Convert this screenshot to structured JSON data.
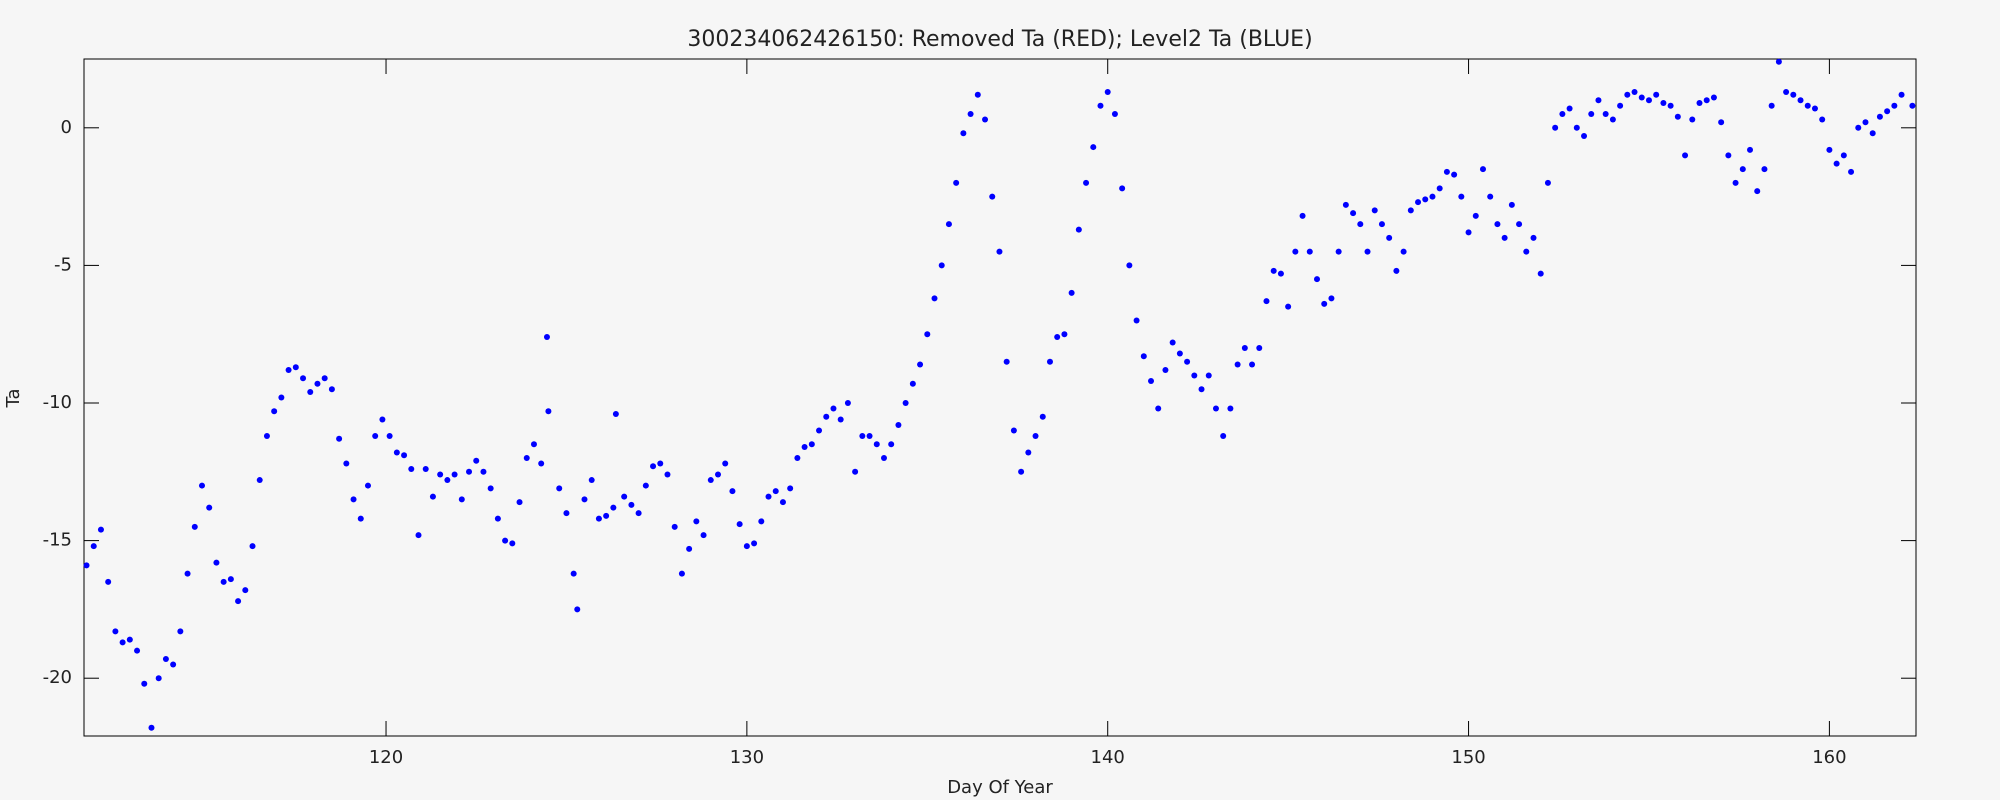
{
  "chart_data": {
    "type": "scatter",
    "title": "300234062426150: Removed Ta (RED); Level2 Ta (BLUE)",
    "x_label": "Day Of Year",
    "y_label": "Ta",
    "xlim": [
      111.63,
      162.4
    ],
    "ylim": [
      -22.1,
      2.5
    ],
    "xticks": [
      120,
      130,
      140,
      150,
      160
    ],
    "yticks": [
      -20,
      -15,
      -10,
      -5,
      0
    ],
    "series": [
      {
        "name": "Level2 Ta",
        "color": "#0000ff",
        "x": [
          111.7,
          111.9,
          112.1,
          112.3,
          112.5,
          112.7,
          112.9,
          113.1,
          113.3,
          113.5,
          113.7,
          113.9,
          114.1,
          114.3,
          114.5,
          114.7,
          114.9,
          115.1,
          115.3,
          115.5,
          115.7,
          115.9,
          116.1,
          116.3,
          116.5,
          116.7,
          116.9,
          117.1,
          117.3,
          117.5,
          117.7,
          117.9,
          118.1,
          118.3,
          118.5,
          118.7,
          118.9,
          119.1,
          119.3,
          119.5,
          119.7,
          119.9,
          120.1,
          120.3,
          120.5,
          120.7,
          120.9,
          121.1,
          121.3,
          121.5,
          121.7,
          121.9,
          122.1,
          122.3,
          122.5,
          122.7,
          122.9,
          123.1,
          123.3,
          123.5,
          123.7,
          123.9,
          124.1,
          124.3,
          124.46,
          124.5,
          124.8,
          125.0,
          125.2,
          125.3,
          125.5,
          125.7,
          125.9,
          126.1,
          126.3,
          126.37,
          126.6,
          126.8,
          127.0,
          127.2,
          127.4,
          127.6,
          127.8,
          128.0,
          128.2,
          128.4,
          128.6,
          128.8,
          129.0,
          129.2,
          129.4,
          129.6,
          129.8,
          130.0,
          130.2,
          130.4,
          130.6,
          130.8,
          131.0,
          131.2,
          131.4,
          131.6,
          131.8,
          132.0,
          132.2,
          132.4,
          132.6,
          132.8,
          133.0,
          133.2,
          133.4,
          133.6,
          133.8,
          134.0,
          134.2,
          134.4,
          134.6,
          134.8,
          135.0,
          135.2,
          135.4,
          135.6,
          135.8,
          136.0,
          136.2,
          136.4,
          136.6,
          136.8,
          137.0,
          137.2,
          137.4,
          137.6,
          137.8,
          138.0,
          138.2,
          138.4,
          138.6,
          138.8,
          139.0,
          139.2,
          139.4,
          139.6,
          139.8,
          140.0,
          140.2,
          140.4,
          140.6,
          140.8,
          141.0,
          141.2,
          141.4,
          141.6,
          141.8,
          142.0,
          142.2,
          142.4,
          142.6,
          142.8,
          143.0,
          143.2,
          143.4,
          143.6,
          143.8,
          144.0,
          144.2,
          144.4,
          144.6,
          144.8,
          145.0,
          145.2,
          145.4,
          145.6,
          145.8,
          146.0,
          146.2,
          146.4,
          146.6,
          146.8,
          147.0,
          147.2,
          147.4,
          147.6,
          147.8,
          148.0,
          148.2,
          148.4,
          148.6,
          148.8,
          149.0,
          149.2,
          149.4,
          149.6,
          149.8,
          150.0,
          150.2,
          150.4,
          150.6,
          150.8,
          151.0,
          151.2,
          151.4,
          151.6,
          151.8,
          152.0,
          152.2,
          152.4,
          152.6,
          152.8,
          153.0,
          153.2,
          153.4,
          153.6,
          153.8,
          154.0,
          154.2,
          154.4,
          154.6,
          154.8,
          155.0,
          155.2,
          155.4,
          155.6,
          155.8,
          156.0,
          156.2,
          156.4,
          156.6,
          156.8,
          157.0,
          157.2,
          157.4,
          157.6,
          157.8,
          158.0,
          158.2,
          158.4,
          158.6,
          158.8,
          159.0,
          159.2,
          159.4,
          159.6,
          159.8,
          160.0,
          160.2,
          160.4,
          160.6,
          160.8,
          161.0,
          161.2,
          161.4,
          161.6,
          161.8,
          162.0,
          162.3
        ],
        "values": [
          -15.9,
          -15.2,
          -14.6,
          -16.5,
          -18.3,
          -18.7,
          -18.6,
          -19.0,
          -20.2,
          -21.8,
          -20.0,
          -19.3,
          -19.5,
          -18.3,
          -16.2,
          -14.5,
          -13.0,
          -13.8,
          -15.8,
          -16.5,
          -16.4,
          -17.2,
          -16.8,
          -15.2,
          -12.8,
          -11.2,
          -10.3,
          -9.8,
          -8.8,
          -8.7,
          -9.1,
          -9.6,
          -9.3,
          -9.1,
          -9.5,
          -11.3,
          -12.2,
          -13.5,
          -14.2,
          -13.0,
          -11.2,
          -10.6,
          -11.2,
          -11.8,
          -11.9,
          -12.4,
          -14.8,
          -12.4,
          -13.4,
          -12.6,
          -12.8,
          -12.6,
          -13.5,
          -12.5,
          -12.1,
          -12.5,
          -13.1,
          -14.2,
          -15.0,
          -15.1,
          -13.6,
          -12.0,
          -11.5,
          -12.2,
          -7.6,
          -10.3,
          -13.1,
          -14.0,
          -16.2,
          -17.5,
          -13.5,
          -12.8,
          -14.2,
          -14.1,
          -13.8,
          -10.4,
          -13.4,
          -13.7,
          -14.0,
          -13.0,
          -12.3,
          -12.2,
          -12.6,
          -14.5,
          -16.2,
          -15.3,
          -14.3,
          -14.8,
          -12.8,
          -12.6,
          -12.2,
          -13.2,
          -14.4,
          -15.2,
          -15.1,
          -14.3,
          -13.4,
          -13.2,
          -13.6,
          -13.1,
          -12.0,
          -11.6,
          -11.5,
          -11.0,
          -10.5,
          -10.2,
          -10.6,
          -10.0,
          -12.5,
          -11.2,
          -11.2,
          -11.5,
          -12.0,
          -11.5,
          -10.8,
          -10.0,
          -9.3,
          -8.6,
          -7.5,
          -6.2,
          -5.0,
          -3.5,
          -2.0,
          -0.2,
          0.5,
          1.2,
          0.3,
          -2.5,
          -4.5,
          -8.5,
          -11.0,
          -12.5,
          -11.8,
          -11.2,
          -10.5,
          -8.5,
          -7.6,
          -7.5,
          -6.0,
          -3.7,
          -2.0,
          -0.7,
          0.8,
          1.3,
          0.5,
          -2.2,
          -5.0,
          -7.0,
          -8.3,
          -9.2,
          -10.2,
          -8.8,
          -7.8,
          -8.2,
          -8.5,
          -9.0,
          -9.5,
          -9.0,
          -10.2,
          -11.2,
          -10.2,
          -8.6,
          -8.0,
          -8.6,
          -8.0,
          -6.3,
          -5.2,
          -5.3,
          -6.5,
          -4.5,
          -3.2,
          -4.5,
          -5.5,
          -6.4,
          -6.2,
          -4.5,
          -2.8,
          -3.1,
          -3.5,
          -4.5,
          -3.0,
          -3.5,
          -4.0,
          -5.2,
          -4.5,
          -3.0,
          -2.7,
          -2.6,
          -2.5,
          -2.2,
          -1.6,
          -1.7,
          -2.5,
          -3.8,
          -3.2,
          -1.5,
          -2.5,
          -3.5,
          -4.0,
          -2.8,
          -3.5,
          -4.5,
          -4.0,
          -5.3,
          -2.0,
          0.0,
          0.5,
          0.7,
          0.0,
          -0.3,
          0.5,
          1.0,
          0.5,
          0.3,
          0.8,
          1.2,
          1.3,
          1.1,
          1.0,
          1.2,
          0.9,
          0.8,
          0.4,
          -1.0,
          0.3,
          0.9,
          1.0,
          1.1,
          0.2,
          -1.0,
          -2.0,
          -1.5,
          -0.8,
          -2.3,
          -1.5,
          0.8,
          2.4,
          1.3,
          1.2,
          1.0,
          0.8,
          0.7,
          0.3,
          -0.8,
          -1.3,
          -1.0,
          -1.6,
          0.0,
          0.2,
          -0.2,
          0.4,
          0.6,
          0.8,
          1.2,
          0.8
        ]
      }
    ]
  }
}
